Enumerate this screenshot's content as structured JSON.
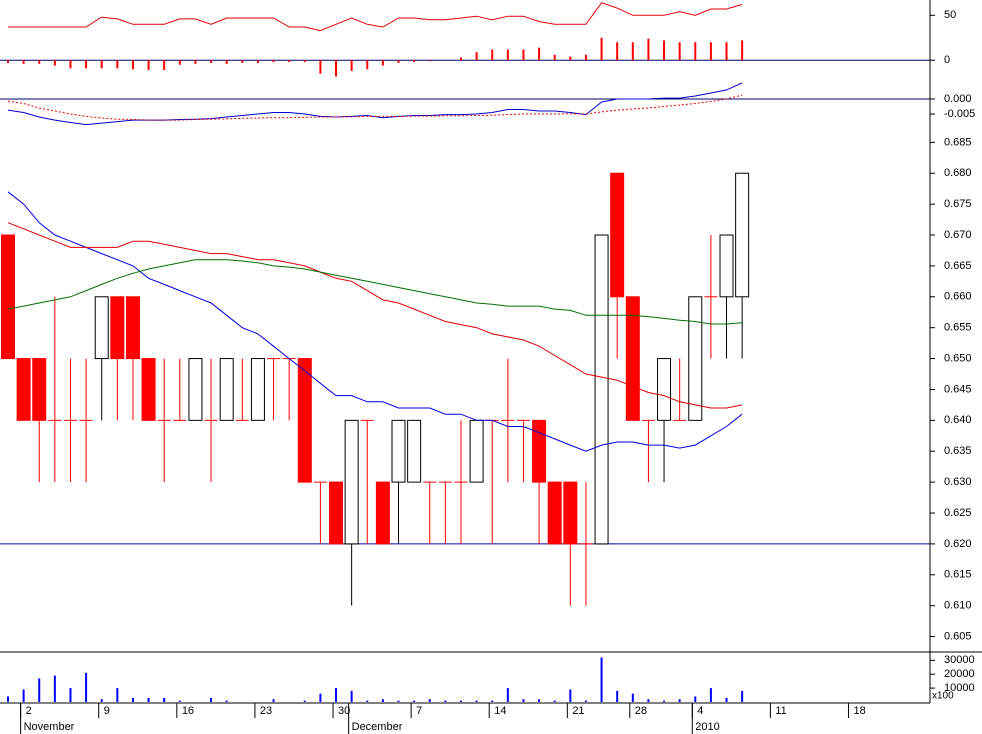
{
  "chart_data": [
    {
      "type": "combo",
      "ylim": [
        -22,
        67
      ],
      "yticks": [
        50,
        0
      ],
      "hlines": [
        0
      ],
      "series": [
        {
          "type": "bar",
          "color": "#ff0000",
          "values": [
            -3,
            -4,
            -4,
            -6,
            -9,
            -9,
            -9,
            -9,
            -10,
            -11,
            -11,
            -5,
            -4,
            -3,
            -4,
            -3,
            -3,
            -2,
            -2,
            -2,
            -15,
            -18,
            -12,
            -10,
            -6,
            -3,
            -2,
            -1,
            0,
            3,
            9,
            12,
            12,
            12,
            14,
            6,
            4,
            6,
            25,
            20,
            20,
            24,
            22,
            20,
            20,
            20,
            20,
            22
          ]
        },
        {
          "type": "line",
          "color": "#e00000",
          "values": [
            37,
            37,
            37,
            37,
            37,
            37,
            48,
            46,
            40,
            40,
            40,
            46,
            46,
            40,
            47,
            47,
            47,
            47,
            37,
            37,
            33,
            40,
            47,
            40,
            37,
            47,
            47,
            45,
            45,
            47,
            49,
            45,
            49,
            49,
            43,
            40,
            40,
            40,
            64,
            58,
            50,
            50,
            50,
            54,
            50,
            57,
            57,
            62
          ]
        }
      ]
    },
    {
      "type": "line",
      "ylim": [
        -0.0103,
        0.0063
      ],
      "yticks": [
        {
          "value": 0,
          "label": "0.000"
        },
        -0.005
      ],
      "hlines": [
        0
      ],
      "series": [
        {
          "color": "#0000cc",
          "values": [
            -0.0037,
            -0.0045,
            -0.006,
            -0.007,
            -0.0078,
            -0.0085,
            -0.008,
            -0.0075,
            -0.007,
            -0.007,
            -0.007,
            -0.0068,
            -0.0067,
            -0.0065,
            -0.006,
            -0.0055,
            -0.005,
            -0.0045,
            -0.0045,
            -0.005,
            -0.0058,
            -0.006,
            -0.0058,
            -0.0055,
            -0.0062,
            -0.0058,
            -0.0055,
            -0.0055,
            -0.0052,
            -0.0052,
            -0.005,
            -0.0045,
            -0.0035,
            -0.0035,
            -0.004,
            -0.004,
            -0.0045,
            -0.0052,
            -0.001,
            0,
            0,
            0,
            0.0003,
            0.0003,
            0.001,
            0.002,
            0.003,
            0.0053
          ]
        },
        {
          "color": "#e00000",
          "dashed": true,
          "values": [
            -0.0007,
            -0.0015,
            -0.003,
            -0.004,
            -0.005,
            -0.0058,
            -0.0063,
            -0.0067,
            -0.0068,
            -0.007,
            -0.007,
            -0.007,
            -0.0068,
            -0.0067,
            -0.0066,
            -0.0064,
            -0.0063,
            -0.0062,
            -0.0062,
            -0.0061,
            -0.006,
            -0.006,
            -0.0059,
            -0.0058,
            -0.0058,
            -0.0058,
            -0.0057,
            -0.0057,
            -0.0056,
            -0.0056,
            -0.0055,
            -0.0054,
            -0.0052,
            -0.005,
            -0.005,
            -0.005,
            -0.0049,
            -0.005,
            -0.0043,
            -0.0037,
            -0.0033,
            -0.003,
            -0.0025,
            -0.002,
            -0.0015,
            -0.0008,
            0,
            0.0013
          ]
        }
      ]
    },
    {
      "type": "candlestick",
      "ylim": [
        0.6025,
        0.687
      ],
      "yticks": [
        {
          "value": 0.685,
          "label": "0.685"
        },
        {
          "value": 0.68,
          "label": "0.680"
        },
        0.675,
        {
          "value": 0.67,
          "label": "0.670"
        },
        0.665,
        {
          "value": 0.66,
          "label": "0.660"
        },
        0.655,
        {
          "value": 0.65,
          "label": "0.650"
        },
        0.645,
        {
          "value": 0.64,
          "label": "0.640"
        },
        0.635,
        {
          "value": 0.63,
          "label": "0.630"
        },
        0.625,
        {
          "value": 0.62,
          "label": "0.620"
        },
        0.615,
        {
          "value": 0.61,
          "label": "0.610"
        },
        0.605
      ],
      "hlines": [
        0.62
      ],
      "up_color": "#ffffff",
      "down_color": "#ff0000",
      "open": [
        0.67,
        0.65,
        0.65,
        0.64,
        0.64,
        0.64,
        0.65,
        0.66,
        0.66,
        0.65,
        0.64,
        0.64,
        0.64,
        0.64,
        0.64,
        0.64,
        0.64,
        0.65,
        0.65,
        0.65,
        0.63,
        0.63,
        0.62,
        0.64,
        0.63,
        0.63,
        0.63,
        0.63,
        0.63,
        0.63,
        0.63,
        0.64,
        0.64,
        0.64,
        0.64,
        0.63,
        0.63,
        0.62,
        0.62,
        0.68,
        0.66,
        0.64,
        0.64,
        0.64,
        0.64,
        0.66,
        0.66,
        0.66
      ],
      "high": [
        0.67,
        0.65,
        0.65,
        0.66,
        0.65,
        0.65,
        0.66,
        0.66,
        0.66,
        0.65,
        0.65,
        0.65,
        0.65,
        0.65,
        0.65,
        0.65,
        0.65,
        0.65,
        0.65,
        0.65,
        0.63,
        0.63,
        0.64,
        0.64,
        0.63,
        0.64,
        0.64,
        0.63,
        0.63,
        0.64,
        0.64,
        0.64,
        0.65,
        0.64,
        0.64,
        0.63,
        0.63,
        0.63,
        0.67,
        0.68,
        0.66,
        0.64,
        0.65,
        0.65,
        0.66,
        0.67,
        0.67,
        0.68
      ],
      "low": [
        0.65,
        0.64,
        0.63,
        0.63,
        0.63,
        0.63,
        0.64,
        0.64,
        0.64,
        0.64,
        0.63,
        0.64,
        0.64,
        0.63,
        0.64,
        0.64,
        0.64,
        0.64,
        0.64,
        0.63,
        0.62,
        0.62,
        0.61,
        0.62,
        0.62,
        0.62,
        0.63,
        0.62,
        0.62,
        0.62,
        0.63,
        0.62,
        0.63,
        0.63,
        0.62,
        0.62,
        0.61,
        0.61,
        0.62,
        0.65,
        0.64,
        0.63,
        0.63,
        0.64,
        0.64,
        0.65,
        0.65,
        0.65
      ],
      "close": [
        0.65,
        0.64,
        0.64,
        0.64,
        0.64,
        0.64,
        0.66,
        0.65,
        0.65,
        0.64,
        0.64,
        0.64,
        0.65,
        0.64,
        0.65,
        0.64,
        0.65,
        0.65,
        0.65,
        0.63,
        0.63,
        0.62,
        0.64,
        0.64,
        0.62,
        0.64,
        0.64,
        0.63,
        0.63,
        0.63,
        0.64,
        0.64,
        0.64,
        0.64,
        0.63,
        0.62,
        0.62,
        0.62,
        0.67,
        0.66,
        0.64,
        0.64,
        0.65,
        0.64,
        0.66,
        0.66,
        0.67,
        0.68
      ],
      "series": [
        {
          "color": "#0000e0",
          "values": [
            0.677,
            0.675,
            0.672,
            0.67,
            0.669,
            0.668,
            0.667,
            0.666,
            0.665,
            0.663,
            0.662,
            0.661,
            0.66,
            0.659,
            0.657,
            0.655,
            0.654,
            0.652,
            0.65,
            0.648,
            0.646,
            0.644,
            0.644,
            0.643,
            0.643,
            0.642,
            0.642,
            0.642,
            0.641,
            0.641,
            0.64,
            0.64,
            0.639,
            0.639,
            0.638,
            0.637,
            0.636,
            0.635,
            0.636,
            0.6365,
            0.6365,
            0.636,
            0.636,
            0.6355,
            0.636,
            0.6375,
            0.639,
            0.641
          ]
        },
        {
          "color": "#e00000",
          "values": [
            0.672,
            0.671,
            0.67,
            0.669,
            0.668,
            0.668,
            0.668,
            0.668,
            0.669,
            0.669,
            0.6685,
            0.668,
            0.6675,
            0.667,
            0.667,
            0.6665,
            0.666,
            0.666,
            0.6655,
            0.665,
            0.664,
            0.663,
            0.6625,
            0.661,
            0.6595,
            0.659,
            0.658,
            0.657,
            0.656,
            0.6555,
            0.655,
            0.654,
            0.6535,
            0.653,
            0.652,
            0.6505,
            0.649,
            0.6475,
            0.647,
            0.6465,
            0.6455,
            0.6445,
            0.644,
            0.643,
            0.6425,
            0.642,
            0.642,
            0.6425
          ]
        },
        {
          "color": "#007000",
          "values": [
            0.658,
            0.6585,
            0.659,
            0.6595,
            0.66,
            0.661,
            0.662,
            0.663,
            0.6638,
            0.6645,
            0.665,
            0.6655,
            0.666,
            0.666,
            0.666,
            0.6658,
            0.6655,
            0.665,
            0.6648,
            0.6645,
            0.664,
            0.6635,
            0.663,
            0.6625,
            0.662,
            0.6615,
            0.661,
            0.6605,
            0.66,
            0.6595,
            0.659,
            0.6588,
            0.6585,
            0.6585,
            0.6585,
            0.658,
            0.6578,
            0.657,
            0.657,
            0.657,
            0.657,
            0.6568,
            0.6565,
            0.6562,
            0.656,
            0.6556,
            0.6556,
            0.6558
          ]
        }
      ]
    },
    {
      "type": "bar",
      "ylim": [
        0,
        36000
      ],
      "yticks": [
        30000,
        20000,
        10000
      ],
      "unit_label": "x100",
      "color": "#0000ff",
      "values": [
        4000,
        9000,
        17000,
        19000,
        10000,
        21000,
        2000,
        10000,
        3000,
        3000,
        3000,
        1000,
        0,
        3000,
        1000,
        0,
        0,
        2000,
        0,
        1000,
        6000,
        10000,
        8000,
        1000,
        2000,
        1000,
        1000,
        2000,
        1000,
        1000,
        1000,
        1000,
        10000,
        2000,
        2000,
        1000,
        9000,
        1000,
        32000,
        8000,
        6000,
        2000,
        1000,
        2000,
        4000,
        10000,
        3000,
        8000
      ],
      "xticks": [
        {
          "value": 1,
          "label": "2"
        },
        {
          "value": 6,
          "label": "9"
        },
        {
          "value": 11,
          "label": "16"
        },
        {
          "value": 16,
          "label": "23"
        },
        {
          "value": 21,
          "label": "30"
        },
        {
          "value": 26,
          "label": "7"
        },
        {
          "value": 31,
          "label": "14"
        },
        {
          "value": 36,
          "label": "21"
        },
        {
          "value": 40,
          "label": "28"
        },
        {
          "value": 44,
          "label": "4"
        },
        {
          "value": 49,
          "label": "11"
        },
        {
          "value": 54,
          "label": "18"
        }
      ],
      "month_ticks": [
        {
          "value": 1,
          "label": "November"
        },
        {
          "value": 22,
          "label": "December"
        },
        {
          "value": 44,
          "label": "2010"
        }
      ]
    }
  ]
}
